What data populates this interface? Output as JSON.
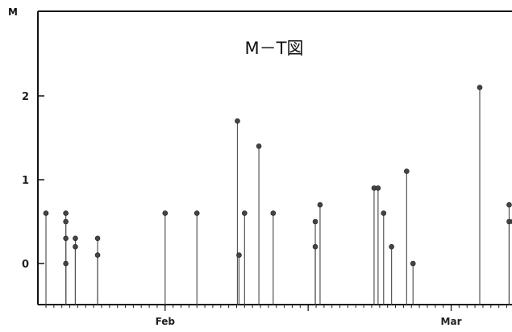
{
  "chart_data": {
    "type": "scatter",
    "style": "stem",
    "title": "M－T図",
    "ylabel": "M",
    "xlabel": "",
    "ylim": [
      -0.5,
      3.0
    ],
    "xlim": [
      0,
      64
    ],
    "y_ticks": [
      0,
      1,
      2
    ],
    "x_months": [
      {
        "label": "Feb",
        "day": 16
      },
      {
        "label": "Mar",
        "day": 52
      }
    ],
    "grid": false,
    "points": [
      {
        "x": 1.0,
        "y": 0.6
      },
      {
        "x": 3.5,
        "y": 0.6
      },
      {
        "x": 3.5,
        "y": 0.5
      },
      {
        "x": 3.5,
        "y": 0.3
      },
      {
        "x": 3.5,
        "y": 0.0
      },
      {
        "x": 4.7,
        "y": 0.3
      },
      {
        "x": 4.7,
        "y": 0.2
      },
      {
        "x": 7.5,
        "y": 0.3
      },
      {
        "x": 7.5,
        "y": 0.1
      },
      {
        "x": 16.0,
        "y": 0.6
      },
      {
        "x": 20.0,
        "y": 0.6
      },
      {
        "x": 25.1,
        "y": 1.7
      },
      {
        "x": 25.3,
        "y": 0.1
      },
      {
        "x": 26.0,
        "y": 0.6
      },
      {
        "x": 27.8,
        "y": 1.4
      },
      {
        "x": 29.6,
        "y": 0.6
      },
      {
        "x": 34.9,
        "y": 0.5
      },
      {
        "x": 34.9,
        "y": 0.2
      },
      {
        "x": 35.5,
        "y": 0.7
      },
      {
        "x": 42.3,
        "y": 0.9
      },
      {
        "x": 42.8,
        "y": 0.9
      },
      {
        "x": 43.5,
        "y": 0.6
      },
      {
        "x": 44.5,
        "y": 0.2
      },
      {
        "x": 46.4,
        "y": 1.1
      },
      {
        "x": 47.2,
        "y": 0.0
      },
      {
        "x": 55.6,
        "y": 2.1
      },
      {
        "x": 59.3,
        "y": 0.7
      },
      {
        "x": 59.3,
        "y": 0.5
      },
      {
        "x": 59.8,
        "y": 0.5
      }
    ]
  }
}
